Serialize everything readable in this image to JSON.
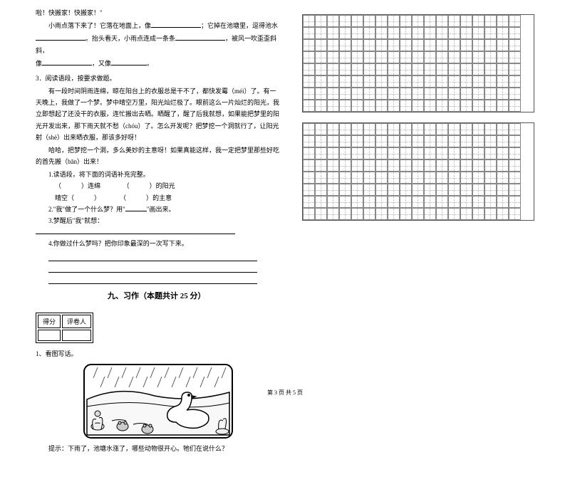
{
  "para1": "啦！快搬家！快搬家！\"",
  "para2_a": "小雨点落下来了！它落在地面上，像",
  "para2_b": "；它掉在池塘里，逗得池水",
  "para2_c": "。抬头看天，小雨点连成一条条",
  "para2_d": "，被风一吹歪歪斜斜，",
  "para2_e": "像",
  "para2_f": "，又像",
  "para2_g": "。",
  "q3_title": "3．阅读语段，按要求做题。",
  "q3_p1": "有一段时间阴雨连绵，晾在阳台上的衣服总是干不了，都快发霉（méi）了。有一天晚上，我做了一个梦。梦中晴空万里，阳光灿烂极了。眼前这么一片灿烂的阳光，我立即想起了还没干的衣服，连忙搬出去晒。晒醒了，醒了后我就想，如果能把梦里的阳光开发出来，那下雨天就不愁（chóu）了。怎么开发呢？把梦挖一个洞就行了，让阳光射（shè）出来晒衣服，那该多好呀！",
  "q3_p2": "哈哈，把梦挖一个洞，多么美妙的主意呀！如果真能这样，我一定把梦里那些好吃的首先搬（bān）出来！",
  "q3_s1": "1.读语段，将下面的词语补充完整。",
  "q3_s1a_a": "连绵",
  "q3_s1a_b": "的阳光",
  "q3_s1b_a": "晴空",
  "q3_s1b_b": "的主意",
  "q3_s2_a": "2.\"我\"做了一个什么梦？用\"",
  "q3_s2_b": "\"画出来。",
  "q3_s3": "3.梦醒后\"我\"就想：",
  "q3_s4": "4.你做过什么梦吗？把你印象最深的一次写下来。",
  "score_a": "得分",
  "score_b": "评卷人",
  "section9": "九、习作（本题共计 25 分）",
  "q1": "1、看图写话。",
  "hint": "提示：下雨了，池塘水涨了，哪些动物很开心。牠们在说什么？",
  "footer": "第 3 页 共 5 页",
  "grid": {
    "rows": 8,
    "cols": 18
  },
  "illustration": {
    "border_color": "#000",
    "bg": "#fff",
    "rain_color": "#555",
    "swan_color": "#fff",
    "swan_stroke": "#000",
    "plant_color": "#333"
  }
}
